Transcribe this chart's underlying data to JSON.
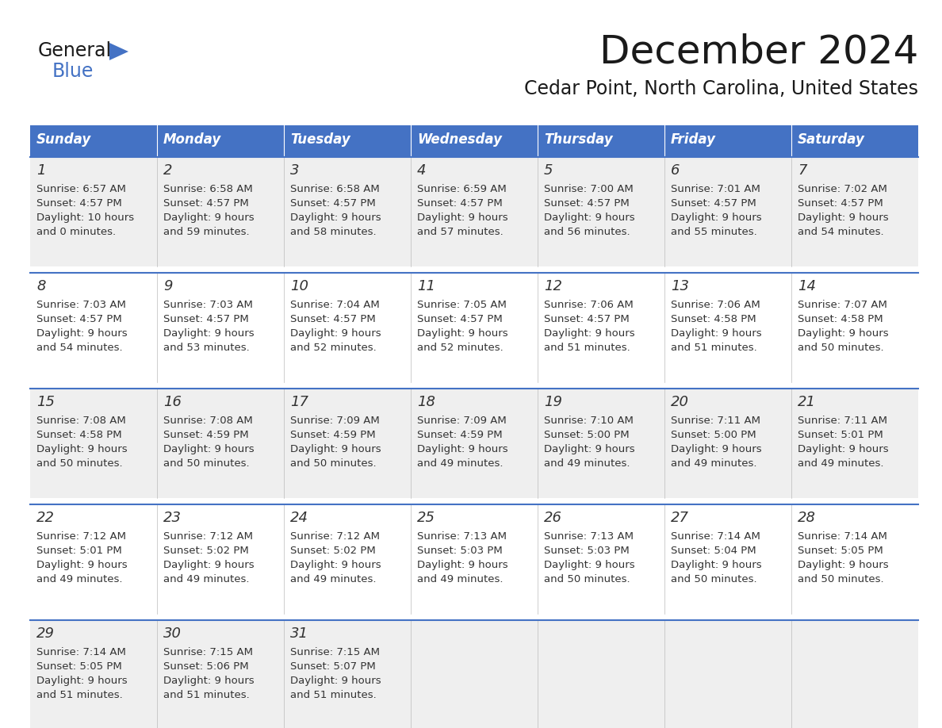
{
  "title": "December 2024",
  "subtitle": "Cedar Point, North Carolina, United States",
  "days_of_week": [
    "Sunday",
    "Monday",
    "Tuesday",
    "Wednesday",
    "Thursday",
    "Friday",
    "Saturday"
  ],
  "header_bg": "#4472C4",
  "header_text": "#FFFFFF",
  "row_bg_odd": "#EFEFEF",
  "row_bg_even": "#FFFFFF",
  "border_color": "#4472C4",
  "title_color": "#1a1a1a",
  "subtitle_color": "#1a1a1a",
  "cell_text_color": "#333333",
  "logo_general_color": "#1a1a1a",
  "logo_blue_color": "#4472C4",
  "logo_triangle_color": "#4472C4",
  "calendar_data": [
    [
      {
        "day": 1,
        "sunrise": "6:57 AM",
        "sunset": "4:57 PM",
        "daylight_h": "10 hours",
        "daylight_m": "and 0 minutes."
      },
      {
        "day": 2,
        "sunrise": "6:58 AM",
        "sunset": "4:57 PM",
        "daylight_h": "9 hours",
        "daylight_m": "and 59 minutes."
      },
      {
        "day": 3,
        "sunrise": "6:58 AM",
        "sunset": "4:57 PM",
        "daylight_h": "9 hours",
        "daylight_m": "and 58 minutes."
      },
      {
        "day": 4,
        "sunrise": "6:59 AM",
        "sunset": "4:57 PM",
        "daylight_h": "9 hours",
        "daylight_m": "and 57 minutes."
      },
      {
        "day": 5,
        "sunrise": "7:00 AM",
        "sunset": "4:57 PM",
        "daylight_h": "9 hours",
        "daylight_m": "and 56 minutes."
      },
      {
        "day": 6,
        "sunrise": "7:01 AM",
        "sunset": "4:57 PM",
        "daylight_h": "9 hours",
        "daylight_m": "and 55 minutes."
      },
      {
        "day": 7,
        "sunrise": "7:02 AM",
        "sunset": "4:57 PM",
        "daylight_h": "9 hours",
        "daylight_m": "and 54 minutes."
      }
    ],
    [
      {
        "day": 8,
        "sunrise": "7:03 AM",
        "sunset": "4:57 PM",
        "daylight_h": "9 hours",
        "daylight_m": "and 54 minutes."
      },
      {
        "day": 9,
        "sunrise": "7:03 AM",
        "sunset": "4:57 PM",
        "daylight_h": "9 hours",
        "daylight_m": "and 53 minutes."
      },
      {
        "day": 10,
        "sunrise": "7:04 AM",
        "sunset": "4:57 PM",
        "daylight_h": "9 hours",
        "daylight_m": "and 52 minutes."
      },
      {
        "day": 11,
        "sunrise": "7:05 AM",
        "sunset": "4:57 PM",
        "daylight_h": "9 hours",
        "daylight_m": "and 52 minutes."
      },
      {
        "day": 12,
        "sunrise": "7:06 AM",
        "sunset": "4:57 PM",
        "daylight_h": "9 hours",
        "daylight_m": "and 51 minutes."
      },
      {
        "day": 13,
        "sunrise": "7:06 AM",
        "sunset": "4:58 PM",
        "daylight_h": "9 hours",
        "daylight_m": "and 51 minutes."
      },
      {
        "day": 14,
        "sunrise": "7:07 AM",
        "sunset": "4:58 PM",
        "daylight_h": "9 hours",
        "daylight_m": "and 50 minutes."
      }
    ],
    [
      {
        "day": 15,
        "sunrise": "7:08 AM",
        "sunset": "4:58 PM",
        "daylight_h": "9 hours",
        "daylight_m": "and 50 minutes."
      },
      {
        "day": 16,
        "sunrise": "7:08 AM",
        "sunset": "4:59 PM",
        "daylight_h": "9 hours",
        "daylight_m": "and 50 minutes."
      },
      {
        "day": 17,
        "sunrise": "7:09 AM",
        "sunset": "4:59 PM",
        "daylight_h": "9 hours",
        "daylight_m": "and 50 minutes."
      },
      {
        "day": 18,
        "sunrise": "7:09 AM",
        "sunset": "4:59 PM",
        "daylight_h": "9 hours",
        "daylight_m": "and 49 minutes."
      },
      {
        "day": 19,
        "sunrise": "7:10 AM",
        "sunset": "5:00 PM",
        "daylight_h": "9 hours",
        "daylight_m": "and 49 minutes."
      },
      {
        "day": 20,
        "sunrise": "7:11 AM",
        "sunset": "5:00 PM",
        "daylight_h": "9 hours",
        "daylight_m": "and 49 minutes."
      },
      {
        "day": 21,
        "sunrise": "7:11 AM",
        "sunset": "5:01 PM",
        "daylight_h": "9 hours",
        "daylight_m": "and 49 minutes."
      }
    ],
    [
      {
        "day": 22,
        "sunrise": "7:12 AM",
        "sunset": "5:01 PM",
        "daylight_h": "9 hours",
        "daylight_m": "and 49 minutes."
      },
      {
        "day": 23,
        "sunrise": "7:12 AM",
        "sunset": "5:02 PM",
        "daylight_h": "9 hours",
        "daylight_m": "and 49 minutes."
      },
      {
        "day": 24,
        "sunrise": "7:12 AM",
        "sunset": "5:02 PM",
        "daylight_h": "9 hours",
        "daylight_m": "and 49 minutes."
      },
      {
        "day": 25,
        "sunrise": "7:13 AM",
        "sunset": "5:03 PM",
        "daylight_h": "9 hours",
        "daylight_m": "and 49 minutes."
      },
      {
        "day": 26,
        "sunrise": "7:13 AM",
        "sunset": "5:03 PM",
        "daylight_h": "9 hours",
        "daylight_m": "and 50 minutes."
      },
      {
        "day": 27,
        "sunrise": "7:14 AM",
        "sunset": "5:04 PM",
        "daylight_h": "9 hours",
        "daylight_m": "and 50 minutes."
      },
      {
        "day": 28,
        "sunrise": "7:14 AM",
        "sunset": "5:05 PM",
        "daylight_h": "9 hours",
        "daylight_m": "and 50 minutes."
      }
    ],
    [
      {
        "day": 29,
        "sunrise": "7:14 AM",
        "sunset": "5:05 PM",
        "daylight_h": "9 hours",
        "daylight_m": "and 51 minutes."
      },
      {
        "day": 30,
        "sunrise": "7:15 AM",
        "sunset": "5:06 PM",
        "daylight_h": "9 hours",
        "daylight_m": "and 51 minutes."
      },
      {
        "day": 31,
        "sunrise": "7:15 AM",
        "sunset": "5:07 PM",
        "daylight_h": "9 hours",
        "daylight_m": "and 51 minutes."
      },
      null,
      null,
      null,
      null
    ]
  ]
}
